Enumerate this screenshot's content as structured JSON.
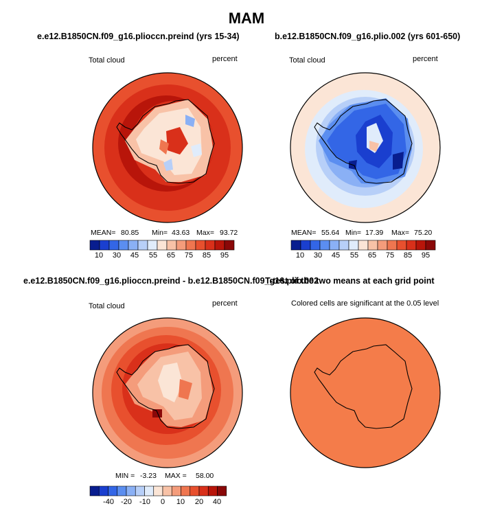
{
  "figure": {
    "title": "MAM"
  },
  "colors": {
    "blues": [
      "#081d8f",
      "#1a3fcf",
      "#3366e6",
      "#5b8ef0",
      "#8ab0f5",
      "#b7cff8",
      "#e0ecfb"
    ],
    "reds_seq": [
      "#fbe5d6",
      "#f8c2a7",
      "#f49c7b",
      "#ef7650",
      "#e8502e",
      "#d9301a",
      "#b8150a",
      "#8a0808"
    ],
    "signif_fill": "#f47c4a"
  },
  "chart_data": [
    {
      "type": "heatmap",
      "title": "e.e12.B1850CN.f09_g16.pliocсn.preind (yrs 15-34)",
      "variable_label": "Total cloud",
      "units_label": "percent",
      "stats": {
        "mean_label": "MEAN=",
        "mean": "80.85",
        "min_label": "Min=",
        "min": "43.63",
        "max_label": "Max=",
        "max": "93.72"
      },
      "colorbar": {
        "ticks": [
          "10",
          "30",
          "45",
          "55",
          "65",
          "75",
          "85",
          "95"
        ]
      }
    },
    {
      "type": "heatmap",
      "title": "b.e12.B1850CN.f09_g16.plio.002 (yrs 601-650)",
      "variable_label": "Total cloud",
      "units_label": "percent",
      "stats": {
        "mean_label": "MEAN=",
        "mean": "55.64",
        "min_label": "Min=",
        "min": "17.39",
        "max_label": "Max=",
        "max": "75.20"
      },
      "colorbar": {
        "ticks": [
          "10",
          "30",
          "45",
          "55",
          "65",
          "75",
          "85",
          "95"
        ]
      }
    },
    {
      "type": "heatmap",
      "title": "e.e12.B1850CN.f09_g16.plioccn.preind - b.e12.B1850CN.f09_g16.plio.002",
      "variable_label": "Total cloud",
      "units_label": "percent",
      "stats": {
        "min_label": "MIN =",
        "min": "-3.23",
        "max_label": "MAX =",
        "max": "58.00"
      },
      "colorbar": {
        "ticks": [
          "-40",
          "-20",
          "-10",
          "0",
          "10",
          "20",
          "40"
        ]
      }
    },
    {
      "type": "heatmap",
      "title": "T-test of the two means at each grid point",
      "subtitle": "Colored cells are significant at the 0.05 level"
    }
  ]
}
